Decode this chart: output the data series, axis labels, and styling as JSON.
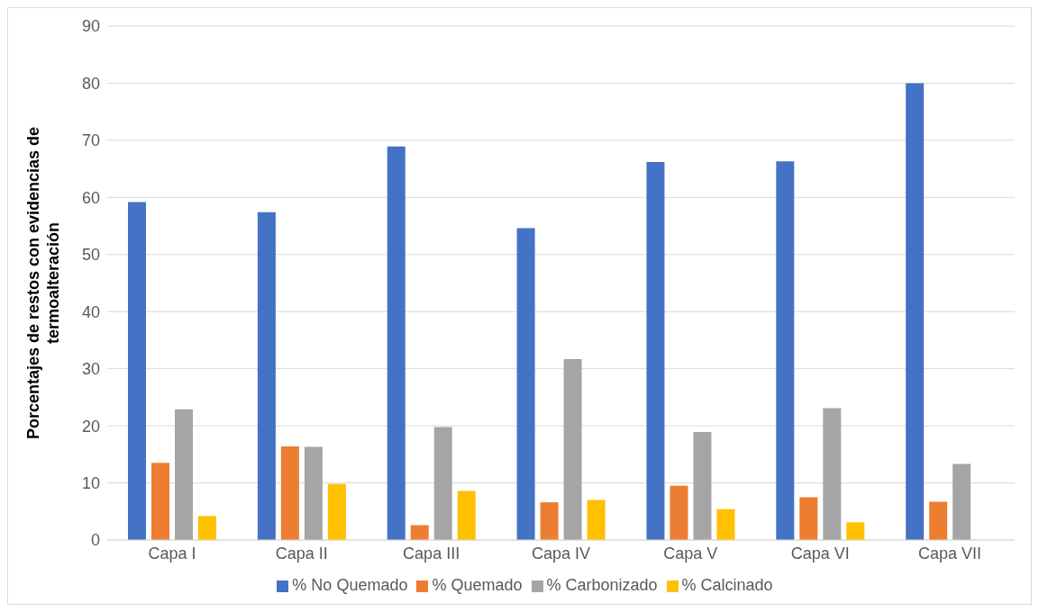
{
  "chart_data": {
    "type": "bar",
    "ylabel": "Porcentajes de restos con evidencias de termoalteración",
    "categories": [
      "Capa I",
      "Capa II",
      "Capa III",
      "Capa IV",
      "Capa V",
      "Capa VI",
      "Capa VII"
    ],
    "series": [
      {
        "name": "% No Quemado",
        "color": "#4472c4",
        "values": [
          59.2,
          57.4,
          68.9,
          54.6,
          66.2,
          66.3,
          80
        ]
      },
      {
        "name": "% Quemado",
        "color": "#ed7d31",
        "values": [
          13.5,
          16.4,
          2.6,
          6.6,
          9.5,
          7.5,
          6.7
        ]
      },
      {
        "name": "% Carbonizado",
        "color": "#a5a5a5",
        "values": [
          22.9,
          16.3,
          19.8,
          31.7,
          18.9,
          23.1,
          13.3
        ]
      },
      {
        "name": "% Calcinado",
        "color": "#ffc000",
        "values": [
          4.2,
          9.8,
          8.6,
          7.0,
          5.4,
          3.1,
          0
        ]
      }
    ],
    "ylim": [
      0,
      90
    ],
    "yticks": [
      0,
      10,
      20,
      30,
      40,
      50,
      60,
      70,
      80,
      90
    ],
    "grid": "y",
    "legend": "bottom"
  }
}
